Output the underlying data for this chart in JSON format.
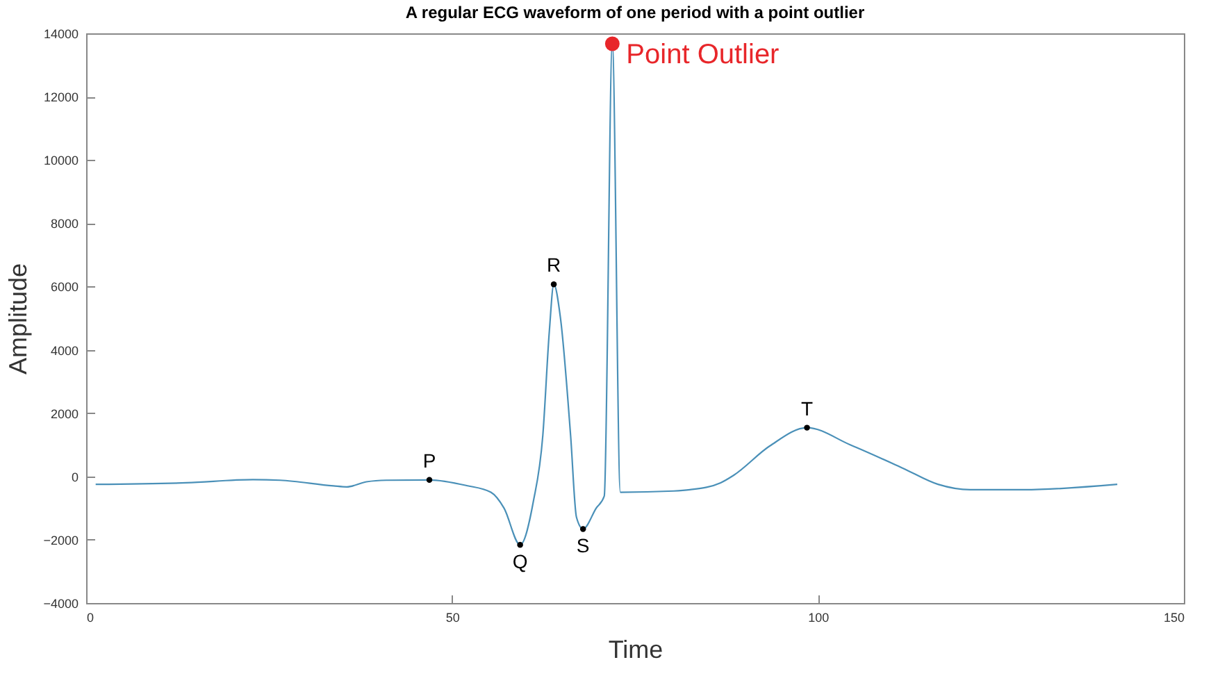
{
  "chart_data": {
    "type": "line",
    "title": "A regular ECG waveform of one period with a point outlier",
    "xlabel": "Time",
    "ylabel": "Amplitude",
    "xlim": [
      0,
      150
    ],
    "xticks": [
      0,
      50,
      100,
      150
    ],
    "ylim": [
      -4000,
      14000
    ],
    "yticks": [
      -4000,
      -2000,
      0,
      2000,
      4000,
      6000,
      8000,
      10000,
      12000,
      14000
    ],
    "grid": false,
    "series": [
      {
        "color": "#4a90b8",
        "marker": "none",
        "x": [
          1.3,
          13.7,
          22.8,
          26.5,
          33.8,
          35.6,
          38.3,
          41,
          46.9,
          52,
          55.3,
          57.1,
          59.3,
          61.1,
          62.4,
          63.3,
          63.9,
          64.8,
          66.2,
          67,
          67.9,
          69.7,
          70.8,
          71.9,
          73,
          80.3,
          82.5,
          86.7,
          88.5,
          93.4,
          98.5,
          104.4,
          111.7,
          116.4,
          120.8,
          128.1,
          140.9
        ],
        "values": [
          -250,
          -200,
          -100,
          -120,
          -300,
          -330,
          -170,
          -120,
          -110,
          -290,
          -500,
          -1000,
          -2160,
          -800,
          1290,
          4610,
          6070,
          5030,
          1290,
          -1290,
          -1660,
          -1000,
          -620,
          13670,
          -500,
          -460,
          -420,
          -200,
          40,
          960,
          1540,
          1000,
          250,
          -250,
          -420,
          -420,
          -250
        ]
      },
      {
        "type": "scatter",
        "color": "#000000",
        "marker": "circle",
        "x": [
          46.9,
          59.3,
          63.9,
          67.9,
          98.5
        ],
        "values": [
          -110,
          -2160,
          6070,
          -1660,
          1540
        ]
      },
      {
        "type": "scatter",
        "color": "#e8262a",
        "marker": "circle",
        "x": [
          71.9
        ],
        "values": [
          13670
        ]
      }
    ],
    "annotations": [
      {
        "text": "P",
        "x": 46.9,
        "y": -110
      },
      {
        "text": "Q",
        "x": 59.3,
        "y": -2160
      },
      {
        "text": "R",
        "x": 63.9,
        "y": 6070
      },
      {
        "text": "S",
        "x": 67.9,
        "y": -1660
      },
      {
        "text": "T",
        "x": 98.5,
        "y": 1540
      },
      {
        "text": "Point Outlier",
        "x": 71.9,
        "y": 13670
      }
    ]
  }
}
